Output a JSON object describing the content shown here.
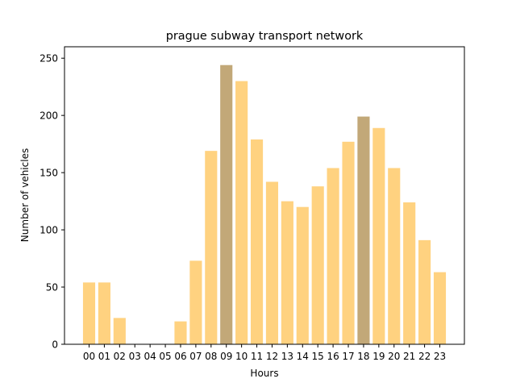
{
  "chart_data": {
    "type": "bar",
    "title": "prague subway transport network",
    "xlabel": "Hours",
    "ylabel": "Number of vehicles",
    "categories": [
      "00",
      "01",
      "02",
      "03",
      "04",
      "05",
      "06",
      "07",
      "08",
      "09",
      "10",
      "11",
      "12",
      "13",
      "14",
      "15",
      "16",
      "17",
      "18",
      "19",
      "20",
      "21",
      "22",
      "23"
    ],
    "values": [
      54,
      54,
      23,
      0,
      0,
      0,
      20,
      73,
      169,
      244,
      230,
      179,
      142,
      125,
      120,
      138,
      154,
      177,
      199,
      189,
      154,
      124,
      91,
      63
    ],
    "highlighted_categories": [
      "09",
      "18"
    ],
    "ylim": [
      0,
      260
    ],
    "yticks": [
      0,
      50,
      100,
      150,
      200,
      250
    ],
    "grid": false,
    "colors": {
      "bar": "#ffd280",
      "highlight": "#c2a878",
      "axis": "#000000",
      "background": "#ffffff"
    }
  }
}
